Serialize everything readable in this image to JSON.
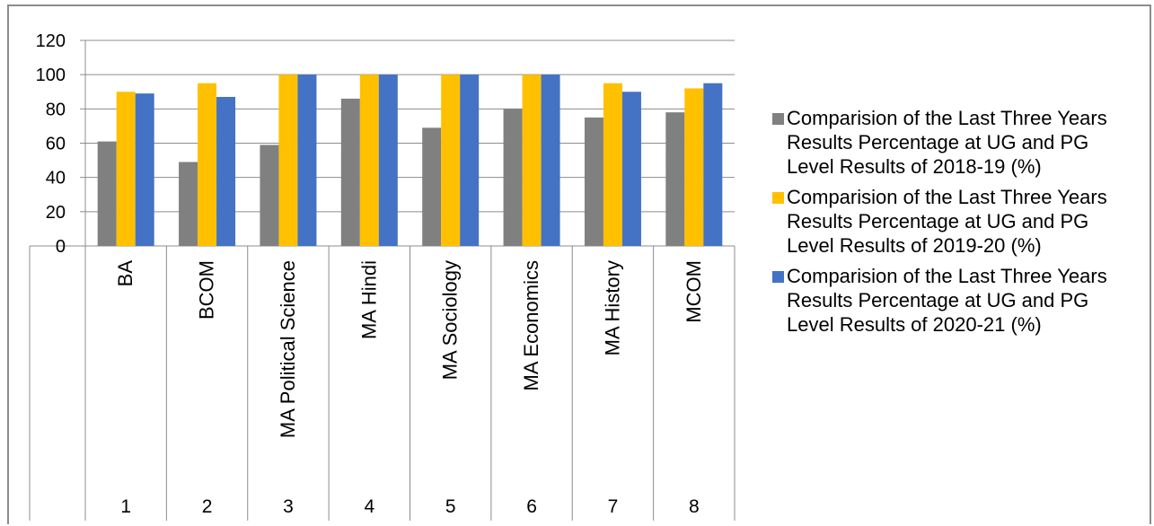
{
  "chart_data": {
    "type": "bar",
    "title": "",
    "xlabel": "",
    "ylabel": "",
    "ylim": [
      0,
      120
    ],
    "yticks": [
      "0",
      "20",
      "40",
      "60",
      "80",
      "100",
      "120"
    ],
    "grid": true,
    "legend_position": "right",
    "categories": [
      "BA",
      "BCOM",
      "MA Political Science",
      "MA Hindi",
      "MA Sociology",
      "MA Economics",
      "MA History",
      "MCOM"
    ],
    "category_numbers": [
      "1",
      "2",
      "3",
      "4",
      "5",
      "6",
      "7",
      "8"
    ],
    "series": [
      {
        "name": "Comparision of the Last Three Years Results Percentage at UG and PG Level Results of 2018-19 (%)",
        "color": "#808080",
        "values": [
          61,
          49,
          59,
          86,
          69,
          80,
          75,
          78
        ]
      },
      {
        "name": "Comparision of the Last Three Years Results Percentage at UG and PG Level Results of 2019-20 (%)",
        "color": "#ffc000",
        "values": [
          90,
          95,
          100,
          100,
          100,
          100,
          95,
          92
        ]
      },
      {
        "name": "Comparision of the Last Three Years Results Percentage at UG and PG Level Results of 2020-21 (%)",
        "color": "#4472c4",
        "values": [
          89,
          87,
          100,
          100,
          100,
          100,
          90,
          95
        ]
      }
    ]
  }
}
